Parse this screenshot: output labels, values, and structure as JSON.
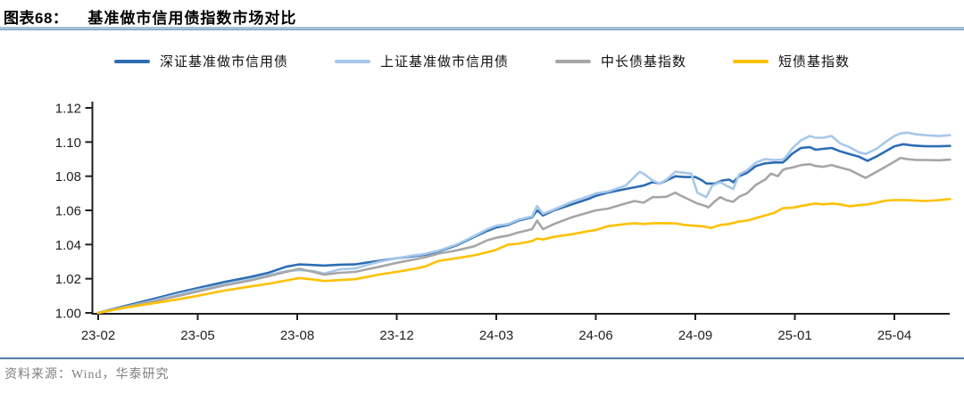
{
  "header": {
    "figure_label": "图表68：",
    "figure_title": "基准做市信用债指数市场对比"
  },
  "source": {
    "text": "资料来源：Wind，华泰研究"
  },
  "chart_data": {
    "type": "line",
    "title": "基准做市信用债指数市场对比",
    "grid": false,
    "legend_position": "top",
    "ylim": [
      1.0,
      1.12
    ],
    "y_ticks": [
      1.0,
      1.02,
      1.04,
      1.06,
      1.08,
      1.1,
      1.12
    ],
    "x_tick_labels": [
      "23-02",
      "23-05",
      "23-08",
      "23-12",
      "24-03",
      "24-06",
      "24-09",
      "25-01",
      "25-04"
    ],
    "x_note": "x values below are positions in labeled-tick units: 0 = 23-02 tick, 8 = 25-04 tick",
    "series": [
      {
        "key": "shenzhen-benchmark-credit",
        "name": "深证基准做市信用债",
        "color": "#2e6db4",
        "points": [
          [
            0,
            1.0
          ],
          [
            0.27,
            1.004
          ],
          [
            0.54,
            1.008
          ],
          [
            0.81,
            1.012
          ],
          [
            1.0,
            1.0145
          ],
          [
            1.26,
            1.018
          ],
          [
            1.53,
            1.021
          ],
          [
            1.71,
            1.0235
          ],
          [
            1.89,
            1.027
          ],
          [
            2.02,
            1.0284
          ],
          [
            2.16,
            1.028
          ],
          [
            2.27,
            1.0277
          ],
          [
            2.43,
            1.0282
          ],
          [
            2.58,
            1.0284
          ],
          [
            2.7,
            1.0295
          ],
          [
            2.83,
            1.0305
          ],
          [
            3.0,
            1.032
          ],
          [
            3.15,
            1.033
          ],
          [
            3.28,
            1.034
          ],
          [
            3.42,
            1.036
          ],
          [
            3.6,
            1.0395
          ],
          [
            3.78,
            1.0445
          ],
          [
            3.91,
            1.048
          ],
          [
            4.0,
            1.05
          ],
          [
            4.12,
            1.0515
          ],
          [
            4.22,
            1.054
          ],
          [
            4.36,
            1.056
          ],
          [
            4.41,
            1.06
          ],
          [
            4.47,
            1.057
          ],
          [
            4.58,
            1.06
          ],
          [
            4.76,
            1.0635
          ],
          [
            4.94,
            1.067
          ],
          [
            5.0,
            1.0685
          ],
          [
            5.12,
            1.0704
          ],
          [
            5.3,
            1.0725
          ],
          [
            5.39,
            1.0735
          ],
          [
            5.48,
            1.0745
          ],
          [
            5.57,
            1.0765
          ],
          [
            5.64,
            1.0757
          ],
          [
            5.71,
            1.0775
          ],
          [
            5.8,
            1.08
          ],
          [
            5.89,
            1.0795
          ],
          [
            6.0,
            1.0795
          ],
          [
            6.07,
            1.0775
          ],
          [
            6.11,
            1.0757
          ],
          [
            6.2,
            1.0757
          ],
          [
            6.27,
            1.0775
          ],
          [
            6.34,
            1.078
          ],
          [
            6.38,
            1.0765
          ],
          [
            6.44,
            1.08
          ],
          [
            6.52,
            1.082
          ],
          [
            6.61,
            1.086
          ],
          [
            6.7,
            1.0875
          ],
          [
            6.79,
            1.088
          ],
          [
            6.88,
            1.088
          ],
          [
            6.92,
            1.09
          ],
          [
            6.97,
            1.093
          ],
          [
            7.06,
            1.0965
          ],
          [
            7.15,
            1.097
          ],
          [
            7.21,
            1.0955
          ],
          [
            7.28,
            1.096
          ],
          [
            7.37,
            1.0965
          ],
          [
            7.46,
            1.0945
          ],
          [
            7.55,
            1.0929
          ],
          [
            7.64,
            1.0915
          ],
          [
            7.73,
            1.089
          ],
          [
            7.82,
            1.0915
          ],
          [
            7.91,
            1.0945
          ],
          [
            8.0,
            1.0975
          ],
          [
            8.09,
            1.0987
          ],
          [
            8.18,
            1.098
          ],
          [
            8.31,
            1.0975
          ],
          [
            8.45,
            1.0975
          ],
          [
            8.56,
            1.0977
          ]
        ]
      },
      {
        "key": "shanghai-benchmark-credit",
        "name": "上证基准做市信用债",
        "color": "#a6c8ea",
        "points": [
          [
            0,
            1.0
          ],
          [
            0.27,
            1.0035
          ],
          [
            0.54,
            1.007
          ],
          [
            0.81,
            1.011
          ],
          [
            1.0,
            1.0135
          ],
          [
            1.26,
            1.0165
          ],
          [
            1.53,
            1.0195
          ],
          [
            1.71,
            1.022
          ],
          [
            1.89,
            1.0245
          ],
          [
            2.02,
            1.025
          ],
          [
            2.16,
            1.0245
          ],
          [
            2.27,
            1.023
          ],
          [
            2.43,
            1.0255
          ],
          [
            2.58,
            1.026
          ],
          [
            2.7,
            1.028
          ],
          [
            2.83,
            1.03
          ],
          [
            3.0,
            1.032
          ],
          [
            3.15,
            1.0335
          ],
          [
            3.28,
            1.0345
          ],
          [
            3.42,
            1.0364
          ],
          [
            3.6,
            1.04
          ],
          [
            3.78,
            1.045
          ],
          [
            3.91,
            1.049
          ],
          [
            4.0,
            1.051
          ],
          [
            4.12,
            1.052
          ],
          [
            4.22,
            1.0545
          ],
          [
            4.36,
            1.0565
          ],
          [
            4.41,
            1.0625
          ],
          [
            4.47,
            1.058
          ],
          [
            4.58,
            1.0605
          ],
          [
            4.76,
            1.065
          ],
          [
            4.94,
            1.0685
          ],
          [
            5.0,
            1.07
          ],
          [
            5.12,
            1.071
          ],
          [
            5.3,
            1.0745
          ],
          [
            5.44,
            1.0826
          ],
          [
            5.48,
            1.0815
          ],
          [
            5.57,
            1.0775
          ],
          [
            5.64,
            1.0757
          ],
          [
            5.71,
            1.078
          ],
          [
            5.8,
            1.0826
          ],
          [
            5.89,
            1.082
          ],
          [
            5.96,
            1.0815
          ],
          [
            6.02,
            1.0704
          ],
          [
            6.11,
            1.0677
          ],
          [
            6.17,
            1.0745
          ],
          [
            6.25,
            1.0765
          ],
          [
            6.31,
            1.0745
          ],
          [
            6.38,
            1.0725
          ],
          [
            6.44,
            1.081
          ],
          [
            6.52,
            1.0835
          ],
          [
            6.61,
            1.088
          ],
          [
            6.7,
            1.09
          ],
          [
            6.79,
            1.0895
          ],
          [
            6.88,
            1.0897
          ],
          [
            6.92,
            1.092
          ],
          [
            6.97,
            1.096
          ],
          [
            7.06,
            1.101
          ],
          [
            7.15,
            1.1035
          ],
          [
            7.21,
            1.1025
          ],
          [
            7.28,
            1.1025
          ],
          [
            7.37,
            1.1035
          ],
          [
            7.46,
            1.099
          ],
          [
            7.55,
            1.097
          ],
          [
            7.64,
            1.094
          ],
          [
            7.71,
            1.093
          ],
          [
            7.82,
            1.096
          ],
          [
            7.91,
            1.1
          ],
          [
            8.0,
            1.1035
          ],
          [
            8.06,
            1.105
          ],
          [
            8.13,
            1.1055
          ],
          [
            8.22,
            1.1045
          ],
          [
            8.31,
            1.104
          ],
          [
            8.45,
            1.1035
          ],
          [
            8.56,
            1.104
          ]
        ]
      },
      {
        "key": "medium-long-bond-fund-index",
        "name": "中长债基指数",
        "color": "#a6a6a6",
        "points": [
          [
            0,
            1.0
          ],
          [
            0.27,
            1.0035
          ],
          [
            0.54,
            1.0065
          ],
          [
            0.81,
            1.01
          ],
          [
            1.0,
            1.0125
          ],
          [
            1.26,
            1.016
          ],
          [
            1.53,
            1.019
          ],
          [
            1.71,
            1.0215
          ],
          [
            1.89,
            1.024
          ],
          [
            2.02,
            1.0258
          ],
          [
            2.16,
            1.024
          ],
          [
            2.27,
            1.0224
          ],
          [
            2.43,
            1.0235
          ],
          [
            2.58,
            1.024
          ],
          [
            2.7,
            1.0255
          ],
          [
            2.83,
            1.027
          ],
          [
            3.0,
            1.0293
          ],
          [
            3.15,
            1.031
          ],
          [
            3.28,
            1.0325
          ],
          [
            3.42,
            1.0347
          ],
          [
            3.6,
            1.0365
          ],
          [
            3.78,
            1.039
          ],
          [
            3.91,
            1.0425
          ],
          [
            4.0,
            1.044
          ],
          [
            4.12,
            1.0453
          ],
          [
            4.22,
            1.047
          ],
          [
            4.36,
            1.049
          ],
          [
            4.41,
            1.054
          ],
          [
            4.47,
            1.049
          ],
          [
            4.58,
            1.052
          ],
          [
            4.76,
            1.056
          ],
          [
            4.94,
            1.059
          ],
          [
            5.0,
            1.06
          ],
          [
            5.12,
            1.061
          ],
          [
            5.3,
            1.064
          ],
          [
            5.39,
            1.0655
          ],
          [
            5.48,
            1.0645
          ],
          [
            5.57,
            1.0677
          ],
          [
            5.64,
            1.0677
          ],
          [
            5.71,
            1.068
          ],
          [
            5.8,
            1.0704
          ],
          [
            5.84,
            1.069
          ],
          [
            5.93,
            1.0665
          ],
          [
            6.02,
            1.064
          ],
          [
            6.11,
            1.0624
          ],
          [
            6.13,
            1.0617
          ],
          [
            6.2,
            1.0655
          ],
          [
            6.25,
            1.0677
          ],
          [
            6.31,
            1.066
          ],
          [
            6.38,
            1.065
          ],
          [
            6.44,
            1.068
          ],
          [
            6.52,
            1.07
          ],
          [
            6.61,
            1.075
          ],
          [
            6.7,
            1.078
          ],
          [
            6.76,
            1.0815
          ],
          [
            6.83,
            1.08
          ],
          [
            6.88,
            1.0837
          ],
          [
            6.92,
            1.0845
          ],
          [
            6.97,
            1.085
          ],
          [
            7.06,
            1.0865
          ],
          [
            7.15,
            1.087
          ],
          [
            7.21,
            1.086
          ],
          [
            7.28,
            1.0855
          ],
          [
            7.37,
            1.0865
          ],
          [
            7.46,
            1.085
          ],
          [
            7.55,
            1.0837
          ],
          [
            7.64,
            1.081
          ],
          [
            7.71,
            1.079
          ],
          [
            7.82,
            1.0825
          ],
          [
            7.91,
            1.0855
          ],
          [
            8.0,
            1.0885
          ],
          [
            8.06,
            1.0907
          ],
          [
            8.13,
            1.09
          ],
          [
            8.22,
            1.0895
          ],
          [
            8.31,
            1.0895
          ],
          [
            8.45,
            1.0893
          ],
          [
            8.56,
            1.0897
          ]
        ]
      },
      {
        "key": "short-bond-fund-index",
        "name": "短债基指数",
        "color": "#ffc000",
        "points": [
          [
            0,
            1.0
          ],
          [
            0.27,
            1.003
          ],
          [
            0.54,
            1.0055
          ],
          [
            0.81,
            1.008
          ],
          [
            1.0,
            1.01
          ],
          [
            1.26,
            1.013
          ],
          [
            1.53,
            1.0155
          ],
          [
            1.71,
            1.017
          ],
          [
            1.89,
            1.019
          ],
          [
            2.02,
            1.0204
          ],
          [
            2.16,
            1.0195
          ],
          [
            2.27,
            1.0187
          ],
          [
            2.43,
            1.0192
          ],
          [
            2.58,
            1.0197
          ],
          [
            2.7,
            1.021
          ],
          [
            2.83,
            1.0225
          ],
          [
            3.0,
            1.024
          ],
          [
            3.15,
            1.0255
          ],
          [
            3.28,
            1.027
          ],
          [
            3.42,
            1.0304
          ],
          [
            3.6,
            1.032
          ],
          [
            3.78,
            1.0337
          ],
          [
            3.91,
            1.0355
          ],
          [
            4.0,
            1.037
          ],
          [
            4.12,
            1.04
          ],
          [
            4.22,
            1.0405
          ],
          [
            4.36,
            1.042
          ],
          [
            4.41,
            1.0435
          ],
          [
            4.47,
            1.043
          ],
          [
            4.58,
            1.0445
          ],
          [
            4.76,
            1.046
          ],
          [
            4.94,
            1.048
          ],
          [
            5.0,
            1.0485
          ],
          [
            5.12,
            1.0507
          ],
          [
            5.3,
            1.052
          ],
          [
            5.39,
            1.0525
          ],
          [
            5.48,
            1.052
          ],
          [
            5.57,
            1.0525
          ],
          [
            5.71,
            1.0525
          ],
          [
            5.8,
            1.0524
          ],
          [
            5.89,
            1.0515
          ],
          [
            5.98,
            1.051
          ],
          [
            6.07,
            1.0507
          ],
          [
            6.16,
            1.0497
          ],
          [
            6.25,
            1.0515
          ],
          [
            6.34,
            1.052
          ],
          [
            6.44,
            1.0535
          ],
          [
            6.52,
            1.054
          ],
          [
            6.61,
            1.0555
          ],
          [
            6.7,
            1.057
          ],
          [
            6.79,
            1.0585
          ],
          [
            6.88,
            1.0613
          ],
          [
            6.97,
            1.0615
          ],
          [
            7.06,
            1.0625
          ],
          [
            7.15,
            1.0635
          ],
          [
            7.21,
            1.064
          ],
          [
            7.28,
            1.0635
          ],
          [
            7.37,
            1.064
          ],
          [
            7.46,
            1.0635
          ],
          [
            7.55,
            1.0624
          ],
          [
            7.64,
            1.063
          ],
          [
            7.73,
            1.0635
          ],
          [
            7.82,
            1.0645
          ],
          [
            7.91,
            1.0657
          ],
          [
            8.0,
            1.066
          ],
          [
            8.13,
            1.066
          ],
          [
            8.31,
            1.0655
          ],
          [
            8.45,
            1.066
          ],
          [
            8.56,
            1.0666
          ]
        ]
      }
    ]
  }
}
